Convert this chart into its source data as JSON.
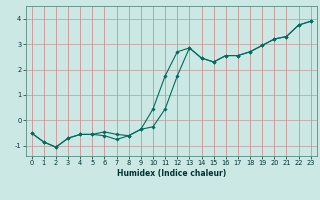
{
  "title": "",
  "xlabel": "Humidex (Indice chaleur)",
  "bg_color": "#cce8e4",
  "grid_color_v": "#d08080",
  "grid_color_h": "#c09898",
  "line_color": "#006b5e",
  "marker_color": "#006b5e",
  "x_data": [
    0,
    1,
    2,
    3,
    4,
    5,
    6,
    7,
    8,
    9,
    10,
    11,
    12,
    13,
    14,
    15,
    16,
    17,
    18,
    19,
    20,
    21,
    22,
    23
  ],
  "y_curve1": [
    -0.5,
    -0.85,
    -1.05,
    -0.7,
    -0.55,
    -0.55,
    -0.6,
    -0.75,
    -0.6,
    -0.35,
    0.45,
    1.75,
    2.7,
    2.85,
    2.45,
    2.3,
    2.55,
    2.55,
    2.7,
    2.95,
    3.2,
    3.3,
    3.75,
    3.9
  ],
  "y_curve2": [
    -0.5,
    -0.85,
    -1.05,
    -0.7,
    -0.55,
    -0.55,
    -0.45,
    -0.55,
    -0.6,
    -0.35,
    -0.25,
    0.45,
    1.75,
    2.85,
    2.45,
    2.3,
    2.55,
    2.55,
    2.7,
    2.95,
    3.2,
    3.3,
    3.75,
    3.9
  ],
  "ylim": [
    -1.4,
    4.5
  ],
  "xlim": [
    -0.5,
    23.5
  ],
  "yticks": [
    -1,
    0,
    1,
    2,
    3,
    4
  ],
  "xlabel_fontsize": 5.5,
  "tick_fontsize": 4.8,
  "linewidth": 0.8,
  "markersize": 1.8
}
